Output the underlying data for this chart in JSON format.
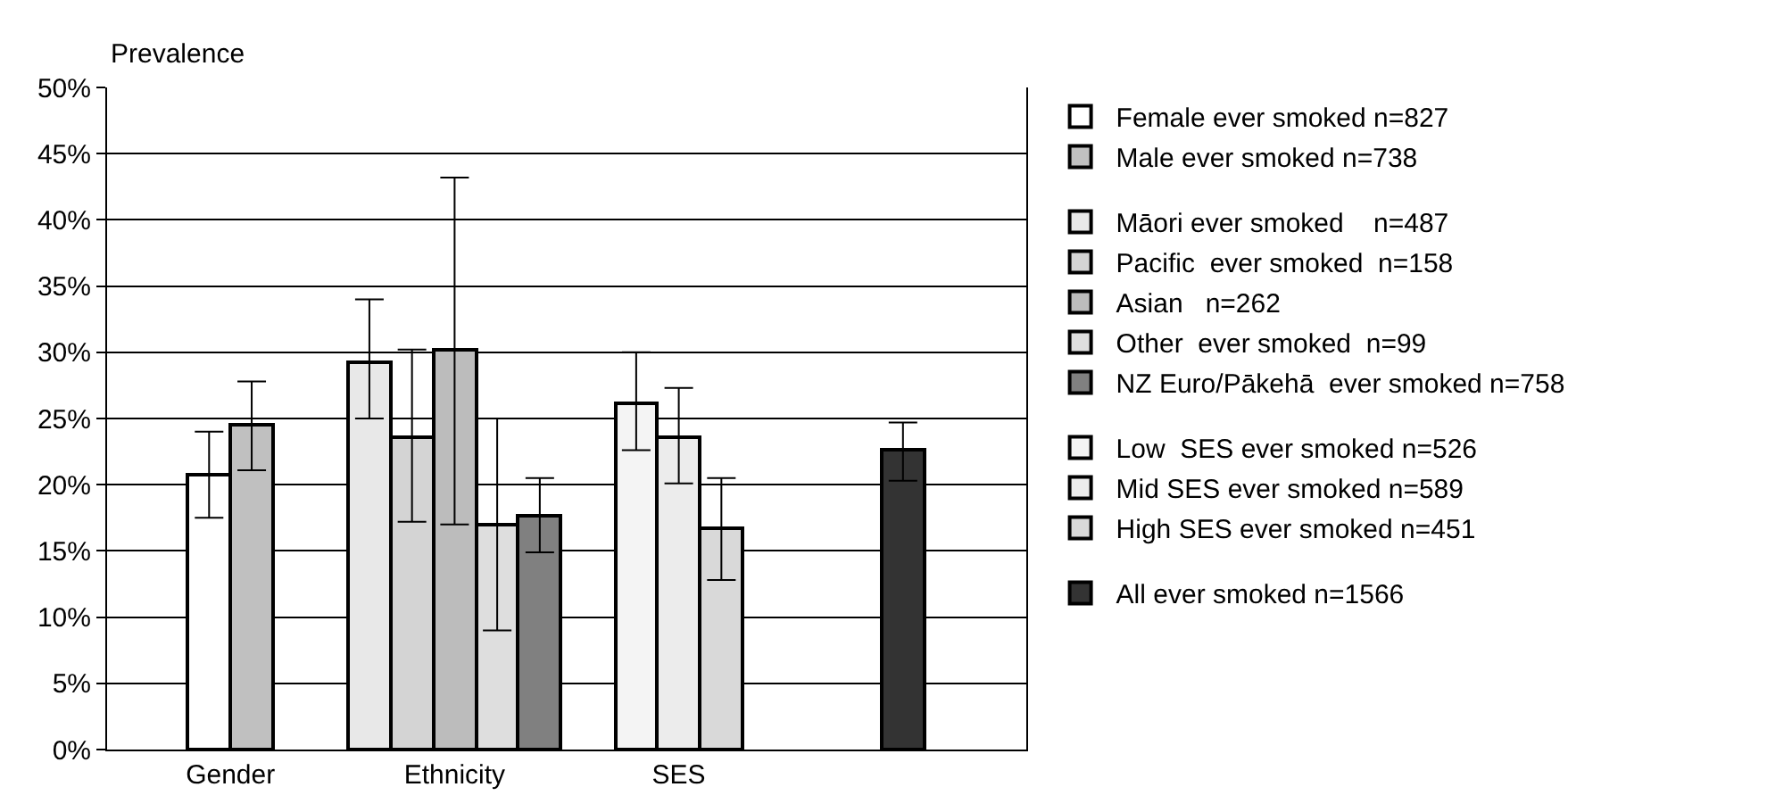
{
  "chart_data": {
    "type": "bar",
    "ylabel": "Prevalence",
    "categories": [
      "Gender",
      "Ethnicity",
      "SES",
      null
    ],
    "ylim": [
      0,
      50
    ],
    "yticks": [
      {
        "value": 0,
        "label": "0%"
      },
      {
        "value": 5,
        "label": "5%"
      },
      {
        "value": 10,
        "label": "10%"
      },
      {
        "value": 15,
        "label": "15%"
      },
      {
        "value": 20,
        "label": "20%"
      },
      {
        "value": 25,
        "label": "25%"
      },
      {
        "value": 30,
        "label": "30%"
      },
      {
        "value": 35,
        "label": "35%"
      },
      {
        "value": 40,
        "label": "40%"
      },
      {
        "value": 45,
        "label": "45%"
      },
      {
        "value": 50,
        "label": "50%"
      }
    ],
    "grid": "y",
    "legend": "right",
    "series": [
      {
        "name": "Female ever smoked n=827",
        "color": "#ffffff",
        "values": [
          20.8,
          null,
          null,
          null
        ],
        "errors": [
          [
            17.5,
            24.0
          ],
          null,
          null,
          null
        ]
      },
      {
        "name": "Male ever smoked n=738",
        "color": "#c0c0c0",
        "values": [
          24.5,
          null,
          null,
          null
        ],
        "errors": [
          [
            21.1,
            27.8
          ],
          null,
          null,
          null
        ]
      },
      {
        "name": "Māori ever smoked    n=487",
        "color": "#e8e8e8",
        "values": [
          null,
          29.3,
          null,
          null
        ],
        "errors": [
          null,
          [
            25.0,
            34.0
          ],
          null,
          null
        ]
      },
      {
        "name": "Pacific  ever smoked  n=158",
        "color": "#d4d4d4",
        "values": [
          null,
          23.6,
          null,
          null
        ],
        "errors": [
          null,
          [
            17.2,
            30.2
          ],
          null,
          null
        ]
      },
      {
        "name": "Asian   n=262",
        "color": "#bcbcbc",
        "values": [
          null,
          30.2,
          null,
          null
        ],
        "errors": [
          null,
          [
            17.0,
            43.2
          ],
          null,
          null
        ]
      },
      {
        "name": "Other  ever smoked  n=99",
        "color": "#dedede",
        "values": [
          null,
          17.0,
          null,
          null
        ],
        "errors": [
          null,
          [
            9.0,
            25.0
          ],
          null,
          null
        ]
      },
      {
        "name": "NZ Euro/Pākehā  ever smoked n=758",
        "color": "#808080",
        "values": [
          null,
          17.7,
          null,
          null
        ],
        "errors": [
          null,
          [
            14.9,
            20.5
          ],
          null,
          null
        ]
      },
      {
        "name": "Low  SES ever smoked n=526",
        "color": "#f4f4f4",
        "values": [
          null,
          null,
          26.2,
          null
        ],
        "errors": [
          null,
          null,
          [
            22.6,
            30.0
          ],
          null
        ]
      },
      {
        "name": "Mid SES ever smoked n=589",
        "color": "#ececec",
        "values": [
          null,
          null,
          23.6,
          null
        ],
        "errors": [
          null,
          null,
          [
            20.1,
            27.3
          ],
          null
        ]
      },
      {
        "name": "High SES ever smoked n=451",
        "color": "#d9d9d9",
        "values": [
          null,
          null,
          16.7,
          null
        ],
        "errors": [
          null,
          null,
          [
            12.8,
            20.5
          ],
          null
        ]
      },
      {
        "name": "All ever smoked n=1566",
        "color": "#333333",
        "values": [
          null,
          null,
          null,
          22.6
        ],
        "errors": [
          null,
          null,
          null,
          [
            20.3,
            24.7
          ]
        ]
      }
    ]
  }
}
